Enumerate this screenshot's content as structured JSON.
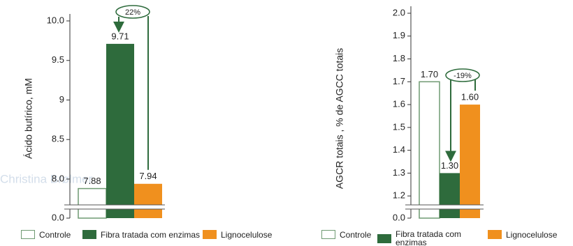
{
  "chart_data": [
    {
      "type": "bar",
      "ylabel": "Ácido butírico, mM",
      "categories": [
        "Controle",
        "Fibra tratada com enzimas",
        "Lignocelulose"
      ],
      "values": [
        7.88,
        9.71,
        7.94
      ],
      "colors": [
        "#ffffff",
        "#2e6b3c",
        "#f0901e"
      ],
      "edge_color": "#6f9a72",
      "ylim": [
        0,
        10.0
      ],
      "axis_break": [
        0,
        7.7
      ],
      "yticks": [
        {
          "value": 0,
          "label": "0.0"
        },
        {
          "value": 8,
          "label": "8.0"
        },
        8.5,
        9.0,
        9.5,
        {
          "value": 10,
          "label": "10.0"
        }
      ],
      "annotation": "22%",
      "watermark": "Christina Brølmer"
    },
    {
      "type": "bar",
      "ylabel": "AGCR totais , % de AGCC totais",
      "categories": [
        "Controle",
        "Fibra tratada com enzimas",
        "Lignocelulose"
      ],
      "values": [
        1.7,
        1.3,
        1.6
      ],
      "value_labels": [
        "1.70",
        "1.30",
        "1.60"
      ],
      "colors": [
        "#ffffff",
        "#2e6b3c",
        "#f0901e"
      ],
      "edge_color": "#6f9a72",
      "ylim": [
        0,
        2.0
      ],
      "axis_break": [
        0,
        1.17
      ],
      "yticks": [
        {
          "value": 0,
          "label": "0.0"
        },
        1.2,
        1.3,
        1.4,
        1.5,
        1.6,
        1.7,
        1.8,
        1.9,
        {
          "value": 2,
          "label": "2.0"
        }
      ],
      "annotation": "-19%"
    }
  ]
}
